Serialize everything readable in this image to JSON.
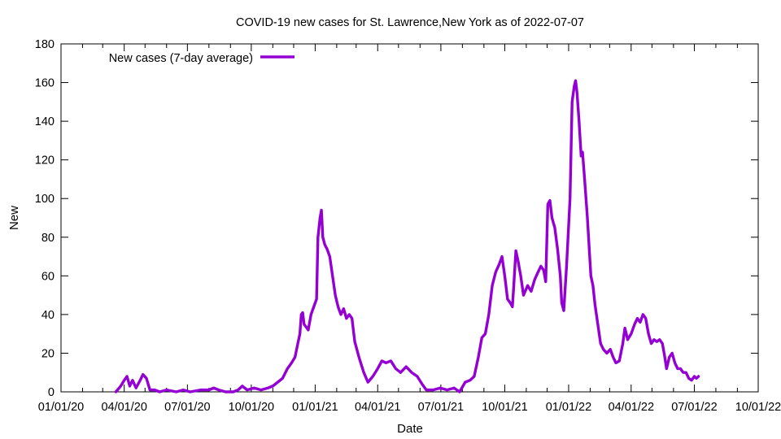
{
  "chart_data": {
    "type": "line",
    "title": "COVID-19 new cases for St. Lawrence,New York as of 2022-07-07",
    "xlabel": "Date",
    "ylabel": "New",
    "xlim": [
      "2020-01-01",
      "2022-10-01"
    ],
    "ylim": [
      0,
      180
    ],
    "y_ticks": [
      0,
      20,
      40,
      60,
      80,
      100,
      120,
      140,
      160,
      180
    ],
    "x_ticks": [
      {
        "date": "2020-01-01",
        "label": "01/01/20"
      },
      {
        "date": "2020-04-01",
        "label": "04/01/20"
      },
      {
        "date": "2020-07-01",
        "label": "07/01/20"
      },
      {
        "date": "2020-10-01",
        "label": "10/01/20"
      },
      {
        "date": "2021-01-01",
        "label": "01/01/21"
      },
      {
        "date": "2021-04-01",
        "label": "04/01/21"
      },
      {
        "date": "2021-07-01",
        "label": "07/01/21"
      },
      {
        "date": "2021-10-01",
        "label": "10/01/21"
      },
      {
        "date": "2022-01-01",
        "label": "01/01/22"
      },
      {
        "date": "2022-04-01",
        "label": "04/01/22"
      },
      {
        "date": "2022-07-01",
        "label": "07/01/22"
      },
      {
        "date": "2022-10-01",
        "label": "10/01/22"
      }
    ],
    "grid": false,
    "legend_position": "top-left",
    "series": [
      {
        "name": "New cases (7-day average)",
        "color": "#9400d3",
        "points": [
          [
            "2020-03-20",
            0
          ],
          [
            "2020-03-27",
            3
          ],
          [
            "2020-04-01",
            6
          ],
          [
            "2020-04-05",
            8
          ],
          [
            "2020-04-09",
            3
          ],
          [
            "2020-04-13",
            6
          ],
          [
            "2020-04-18",
            2
          ],
          [
            "2020-04-24",
            6
          ],
          [
            "2020-04-28",
            9
          ],
          [
            "2020-05-03",
            7
          ],
          [
            "2020-05-08",
            1
          ],
          [
            "2020-05-15",
            1
          ],
          [
            "2020-05-22",
            0
          ],
          [
            "2020-06-01",
            1
          ],
          [
            "2020-06-15",
            0
          ],
          [
            "2020-06-25",
            1
          ],
          [
            "2020-07-05",
            0
          ],
          [
            "2020-07-20",
            1
          ],
          [
            "2020-08-01",
            1
          ],
          [
            "2020-08-08",
            2
          ],
          [
            "2020-08-15",
            1
          ],
          [
            "2020-08-25",
            0
          ],
          [
            "2020-09-05",
            0
          ],
          [
            "2020-09-12",
            1
          ],
          [
            "2020-09-18",
            3
          ],
          [
            "2020-09-25",
            1
          ],
          [
            "2020-10-05",
            2
          ],
          [
            "2020-10-15",
            1
          ],
          [
            "2020-10-25",
            2
          ],
          [
            "2020-11-01",
            3
          ],
          [
            "2020-11-08",
            5
          ],
          [
            "2020-11-15",
            7
          ],
          [
            "2020-11-22",
            12
          ],
          [
            "2020-11-28",
            15
          ],
          [
            "2020-12-03",
            18
          ],
          [
            "2020-12-07",
            25
          ],
          [
            "2020-12-10",
            30
          ],
          [
            "2020-12-12",
            40
          ],
          [
            "2020-12-14",
            41
          ],
          [
            "2020-12-16",
            35
          ],
          [
            "2020-12-18",
            34
          ],
          [
            "2020-12-22",
            32
          ],
          [
            "2020-12-26",
            40
          ],
          [
            "2020-12-30",
            44
          ],
          [
            "2021-01-03",
            48
          ],
          [
            "2021-01-05",
            80
          ],
          [
            "2021-01-08",
            90
          ],
          [
            "2021-01-10",
            94
          ],
          [
            "2021-01-12",
            80
          ],
          [
            "2021-01-15",
            76
          ],
          [
            "2021-01-18",
            74
          ],
          [
            "2021-01-22",
            70
          ],
          [
            "2021-01-26",
            60
          ],
          [
            "2021-01-30",
            50
          ],
          [
            "2021-02-03",
            44
          ],
          [
            "2021-02-07",
            40
          ],
          [
            "2021-02-11",
            43
          ],
          [
            "2021-02-15",
            38
          ],
          [
            "2021-02-19",
            40
          ],
          [
            "2021-02-23",
            38
          ],
          [
            "2021-02-27",
            26
          ],
          [
            "2021-03-05",
            18
          ],
          [
            "2021-03-12",
            10
          ],
          [
            "2021-03-18",
            5
          ],
          [
            "2021-03-25",
            8
          ],
          [
            "2021-04-01",
            12
          ],
          [
            "2021-04-07",
            16
          ],
          [
            "2021-04-13",
            15
          ],
          [
            "2021-04-20",
            16
          ],
          [
            "2021-04-27",
            12
          ],
          [
            "2021-05-04",
            10
          ],
          [
            "2021-05-12",
            13
          ],
          [
            "2021-05-20",
            10
          ],
          [
            "2021-05-28",
            8
          ],
          [
            "2021-06-04",
            4
          ],
          [
            "2021-06-10",
            1
          ],
          [
            "2021-06-20",
            1
          ],
          [
            "2021-06-30",
            2
          ],
          [
            "2021-07-10",
            1
          ],
          [
            "2021-07-20",
            2
          ],
          [
            "2021-07-28",
            0
          ],
          [
            "2021-08-05",
            5
          ],
          [
            "2021-08-12",
            6
          ],
          [
            "2021-08-18",
            8
          ],
          [
            "2021-08-24",
            18
          ],
          [
            "2021-08-29",
            28
          ],
          [
            "2021-09-03",
            30
          ],
          [
            "2021-09-08",
            40
          ],
          [
            "2021-09-13",
            55
          ],
          [
            "2021-09-18",
            62
          ],
          [
            "2021-09-23",
            66
          ],
          [
            "2021-09-27",
            70
          ],
          [
            "2021-10-01",
            60
          ],
          [
            "2021-10-05",
            48
          ],
          [
            "2021-10-09",
            46
          ],
          [
            "2021-10-12",
            44
          ],
          [
            "2021-10-14",
            55
          ],
          [
            "2021-10-17",
            73
          ],
          [
            "2021-10-20",
            68
          ],
          [
            "2021-10-24",
            60
          ],
          [
            "2021-10-28",
            50
          ],
          [
            "2021-11-03",
            55
          ],
          [
            "2021-11-08",
            52
          ],
          [
            "2021-11-13",
            58
          ],
          [
            "2021-11-18",
            62
          ],
          [
            "2021-11-22",
            65
          ],
          [
            "2021-11-26",
            63
          ],
          [
            "2021-11-29",
            57
          ],
          [
            "2021-12-02",
            97
          ],
          [
            "2021-12-05",
            99
          ],
          [
            "2021-12-08",
            90
          ],
          [
            "2021-12-12",
            85
          ],
          [
            "2021-12-16",
            74
          ],
          [
            "2021-12-20",
            60
          ],
          [
            "2021-12-22",
            46
          ],
          [
            "2021-12-25",
            42
          ],
          [
            "2021-12-29",
            65
          ],
          [
            "2022-01-03",
            100
          ],
          [
            "2022-01-06",
            150
          ],
          [
            "2022-01-09",
            158
          ],
          [
            "2022-01-11",
            161
          ],
          [
            "2022-01-13",
            155
          ],
          [
            "2022-01-16",
            140
          ],
          [
            "2022-01-19",
            122
          ],
          [
            "2022-01-21",
            124
          ],
          [
            "2022-01-24",
            110
          ],
          [
            "2022-01-28",
            90
          ],
          [
            "2022-02-02",
            60
          ],
          [
            "2022-02-05",
            55
          ],
          [
            "2022-02-08",
            45
          ],
          [
            "2022-02-12",
            35
          ],
          [
            "2022-02-16",
            25
          ],
          [
            "2022-02-20",
            22
          ],
          [
            "2022-02-25",
            20
          ],
          [
            "2022-03-02",
            22
          ],
          [
            "2022-03-06",
            18
          ],
          [
            "2022-03-10",
            15
          ],
          [
            "2022-03-15",
            16
          ],
          [
            "2022-03-20",
            25
          ],
          [
            "2022-03-23",
            33
          ],
          [
            "2022-03-27",
            27
          ],
          [
            "2022-04-01",
            30
          ],
          [
            "2022-04-06",
            35
          ],
          [
            "2022-04-10",
            38
          ],
          [
            "2022-04-14",
            36
          ],
          [
            "2022-04-18",
            40
          ],
          [
            "2022-04-22",
            38
          ],
          [
            "2022-04-26",
            30
          ],
          [
            "2022-04-30",
            25
          ],
          [
            "2022-05-04",
            27
          ],
          [
            "2022-05-08",
            26
          ],
          [
            "2022-05-12",
            27
          ],
          [
            "2022-05-16",
            25
          ],
          [
            "2022-05-19",
            19
          ],
          [
            "2022-05-22",
            12
          ],
          [
            "2022-05-26",
            18
          ],
          [
            "2022-05-30",
            20
          ],
          [
            "2022-06-03",
            15
          ],
          [
            "2022-06-07",
            12
          ],
          [
            "2022-06-11",
            12
          ],
          [
            "2022-06-15",
            10
          ],
          [
            "2022-06-19",
            10
          ],
          [
            "2022-06-23",
            7
          ],
          [
            "2022-06-27",
            6
          ],
          [
            "2022-07-01",
            8
          ],
          [
            "2022-07-04",
            7
          ],
          [
            "2022-07-07",
            8
          ]
        ]
      }
    ]
  }
}
